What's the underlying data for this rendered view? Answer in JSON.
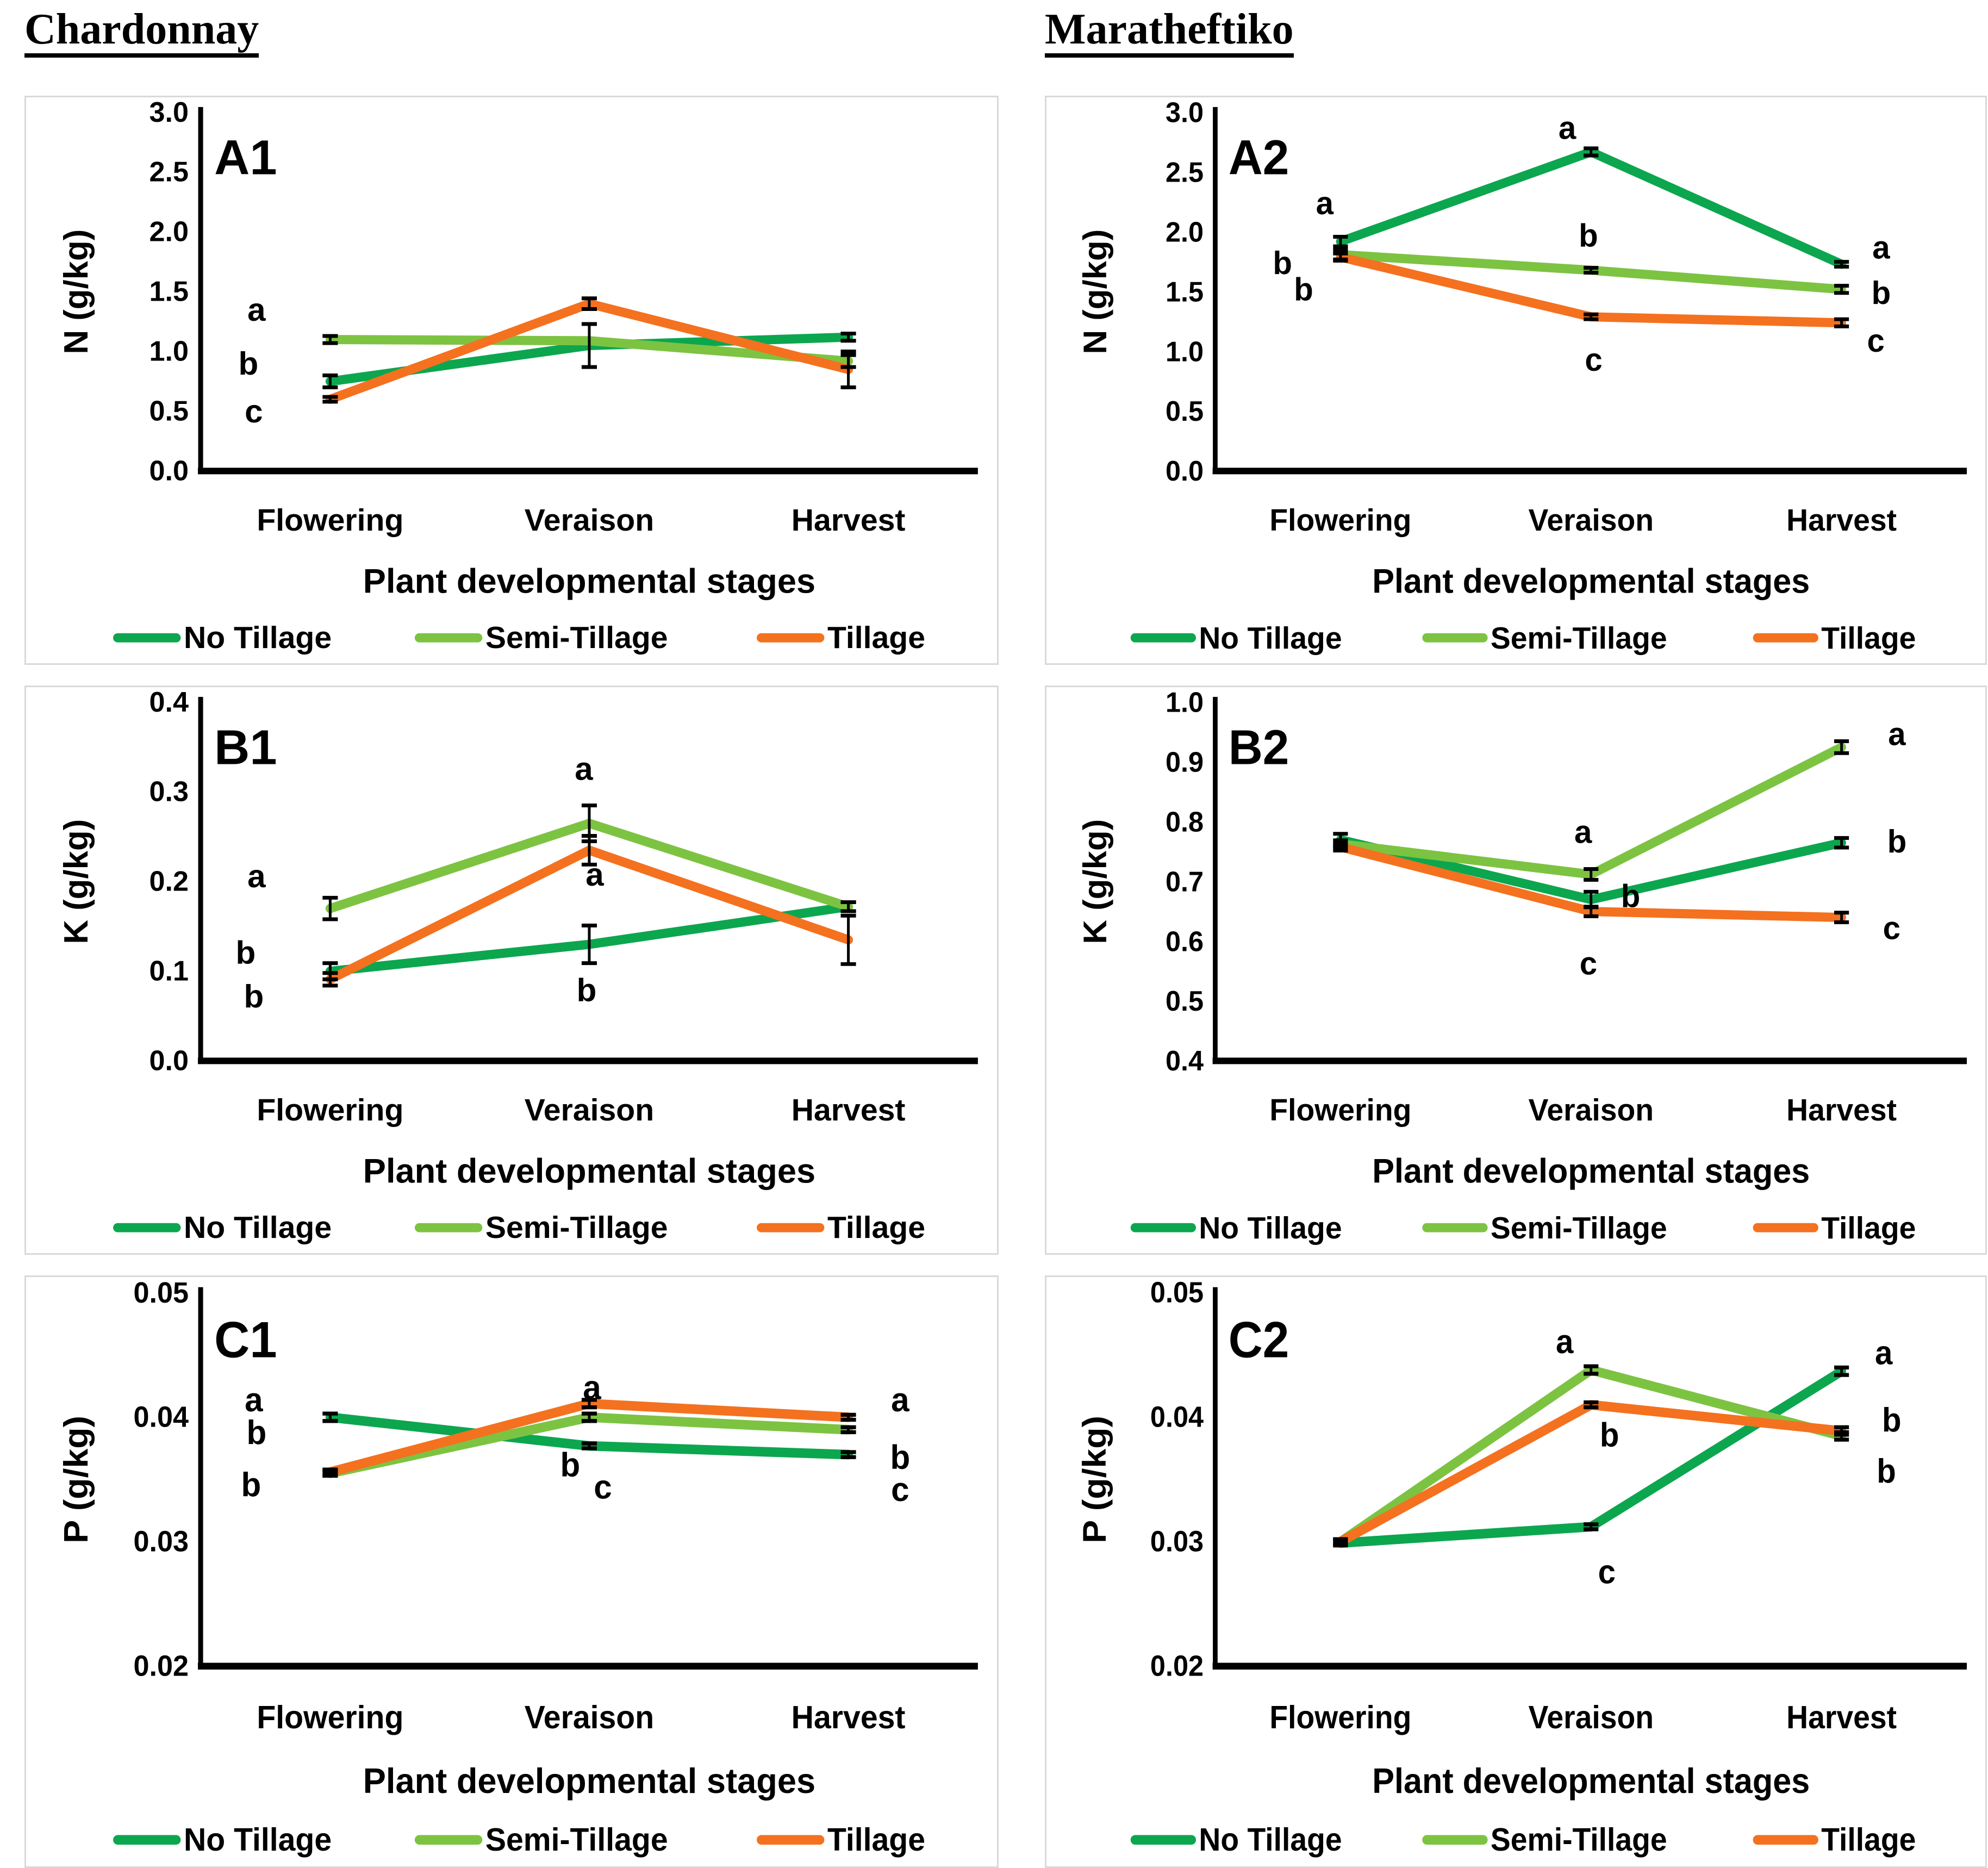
{
  "figure": {
    "column_titles": [
      {
        "text": "Chardonnay"
      },
      {
        "text": "Maratheftiko"
      }
    ]
  },
  "colors": {
    "no_tillage": "#0CA64F",
    "semi_tillage": "#7DC342",
    "tillage": "#F4711F",
    "error_bar": "#000000",
    "axis": "#000000",
    "panel_border": "#d9d9d9"
  },
  "legend": {
    "items": [
      {
        "label": "No Tillage",
        "color": "#0CA64F"
      },
      {
        "label": "Semi-Tillage",
        "color": "#7DC342"
      },
      {
        "label": "Tillage",
        "color": "#F4711F"
      }
    ]
  },
  "chart_data": [
    {
      "type": "line",
      "id": "A1",
      "variety": "Chardonnay",
      "ylabel": "N (g/kg)",
      "xlabel": "Plant developmental stages",
      "categories": [
        "Flowering",
        "Veraison",
        "Harvest"
      ],
      "ylim": [
        0,
        3
      ],
      "yticks": [
        3.0,
        2.5,
        2.0,
        1.5,
        1.0,
        0.5,
        0.0
      ],
      "ytick_decimals": 1,
      "grid": false,
      "legend_position": "bottom",
      "series": [
        {
          "name": "No Tillage",
          "color": "#0CA64F",
          "values": [
            0.75,
            1.05,
            1.12
          ],
          "errors": [
            0.05,
            0.18,
            0.03
          ]
        },
        {
          "name": "Semi-Tillage",
          "color": "#7DC342",
          "values": [
            1.1,
            1.09,
            0.92
          ],
          "errors": [
            0.03,
            0,
            0.05
          ]
        },
        {
          "name": "Tillage",
          "color": "#F4711F",
          "values": [
            0.6,
            1.4,
            0.85
          ],
          "errors": [
            0.02,
            0.045,
            0.15
          ]
        }
      ],
      "sig_letters": [
        {
          "stage": 0,
          "dx": -135,
          "value": 1.35,
          "label": "a"
        },
        {
          "stage": 0,
          "dx": -150,
          "value": 0.9,
          "label": "b"
        },
        {
          "stage": 0,
          "dx": -140,
          "value": 0.5,
          "label": "c"
        }
      ]
    },
    {
      "type": "line",
      "id": "A2",
      "variety": "Maratheftiko",
      "ylabel": "N (g/kg)",
      "xlabel": "Plant developmental stages",
      "categories": [
        "Flowering",
        "Veraison",
        "Harvest"
      ],
      "ylim": [
        0,
        3
      ],
      "yticks": [
        3.0,
        2.5,
        2.0,
        1.5,
        1.0,
        0.5,
        0.0
      ],
      "ytick_decimals": 1,
      "grid": false,
      "legend_position": "bottom",
      "series": [
        {
          "name": "No Tillage",
          "color": "#0CA64F",
          "values": [
            1.92,
            2.67,
            1.73
          ],
          "errors": [
            0.04,
            0.03,
            0.02
          ]
        },
        {
          "name": "Semi-Tillage",
          "color": "#7DC342",
          "values": [
            1.81,
            1.68,
            1.52
          ],
          "errors": [
            0.04,
            0.02,
            0.03
          ]
        },
        {
          "name": "Tillage",
          "color": "#F4711F",
          "values": [
            1.79,
            1.29,
            1.24
          ],
          "errors": [
            0.03,
            0.02,
            0.03
          ]
        }
      ],
      "sig_letters": [
        {
          "stage": 0,
          "dx": -30,
          "value": 2.24,
          "label": "a"
        },
        {
          "stage": 0,
          "dx": -110,
          "value": 1.74,
          "label": "b"
        },
        {
          "stage": 0,
          "dx": -70,
          "value": 1.52,
          "label": "b"
        },
        {
          "stage": 1,
          "dx": -45,
          "value": 2.87,
          "label": "a"
        },
        {
          "stage": 1,
          "dx": -5,
          "value": 1.97,
          "label": "b"
        },
        {
          "stage": 1,
          "dx": 5,
          "value": 0.93,
          "label": "c"
        },
        {
          "stage": 2,
          "dx": 75,
          "value": 1.87,
          "label": "a"
        },
        {
          "stage": 2,
          "dx": 75,
          "value": 1.49,
          "label": "b"
        },
        {
          "stage": 2,
          "dx": 65,
          "value": 1.09,
          "label": "c"
        }
      ]
    },
    {
      "type": "line",
      "id": "B1",
      "variety": "Chardonnay",
      "ylabel": "K (g/kg)",
      "xlabel": "Plant developmental stages",
      "categories": [
        "Flowering",
        "Veraison",
        "Harvest"
      ],
      "ylim": [
        0,
        0.4
      ],
      "yticks": [
        0.4,
        0.3,
        0.2,
        0.1,
        0.0
      ],
      "ytick_decimals": 1,
      "grid": false,
      "legend_position": "bottom",
      "series": [
        {
          "name": "No Tillage",
          "color": "#0CA64F",
          "values": [
            0.1,
            0.13,
            0.172
          ],
          "errors": [
            0.009,
            0.021,
            0.005
          ]
        },
        {
          "name": "Semi-Tillage",
          "color": "#7DC342",
          "values": [
            0.17,
            0.265,
            0.172
          ],
          "errors": [
            0.012,
            0.02,
            0.005
          ]
        },
        {
          "name": "Tillage",
          "color": "#F4711F",
          "values": [
            0.091,
            0.235,
            0.135
          ],
          "errors": [
            0.007,
            0.016,
            0.027
          ]
        }
      ],
      "sig_letters": [
        {
          "stage": 0,
          "dx": -135,
          "value": 0.206,
          "label": "a"
        },
        {
          "stage": 0,
          "dx": -155,
          "value": 0.121,
          "label": "b"
        },
        {
          "stage": 0,
          "dx": -140,
          "value": 0.072,
          "label": "b"
        },
        {
          "stage": 1,
          "dx": -10,
          "value": 0.326,
          "label": "a"
        },
        {
          "stage": 1,
          "dx": 10,
          "value": 0.208,
          "label": "a"
        },
        {
          "stage": 1,
          "dx": -5,
          "value": 0.079,
          "label": "b"
        }
      ]
    },
    {
      "type": "line",
      "id": "B2",
      "variety": "Maratheftiko",
      "ylabel": "K (g/kg)",
      "xlabel": "Plant developmental stages",
      "categories": [
        "Flowering",
        "Veraison",
        "Harvest"
      ],
      "ylim": [
        0.4,
        1.0
      ],
      "yticks": [
        1.0,
        0.9,
        0.8,
        0.7,
        0.6,
        0.5,
        0.4
      ],
      "ytick_decimals": 1,
      "grid": false,
      "legend_position": "bottom",
      "series": [
        {
          "name": "No Tillage",
          "color": "#0CA64F",
          "values": [
            0.77,
            0.67,
            0.765
          ],
          "errors": [
            0.01,
            0.013,
            0.008
          ]
        },
        {
          "name": "Semi-Tillage",
          "color": "#7DC342",
          "values": [
            0.763,
            0.712,
            0.925
          ],
          "errors": [
            0.006,
            0.009,
            0.01
          ]
        },
        {
          "name": "Tillage",
          "color": "#F4711F",
          "values": [
            0.758,
            0.65,
            0.64
          ],
          "errors": [
            0.006,
            0.008,
            0.008
          ]
        }
      ],
      "sig_letters": [
        {
          "stage": 1,
          "dx": -15,
          "value": 0.783,
          "label": "a"
        },
        {
          "stage": 1,
          "dx": 75,
          "value": 0.676,
          "label": "b"
        },
        {
          "stage": 1,
          "dx": -5,
          "value": 0.563,
          "label": "c"
        },
        {
          "stage": 2,
          "dx": 105,
          "value": 0.947,
          "label": "a"
        },
        {
          "stage": 2,
          "dx": 105,
          "value": 0.767,
          "label": "b"
        },
        {
          "stage": 2,
          "dx": 95,
          "value": 0.622,
          "label": "c"
        }
      ]
    },
    {
      "type": "line",
      "id": "C1",
      "variety": "Chardonnay",
      "ylabel": "P (g/kg)",
      "xlabel": "Plant developmental stages",
      "categories": [
        "Flowering",
        "Veraison",
        "Harvest"
      ],
      "ylim": [
        0.02,
        0.05
      ],
      "yticks": [
        0.05,
        0.04,
        0.03,
        0.02
      ],
      "ytick_decimals": 2,
      "grid": false,
      "legend_position": "bottom",
      "series": [
        {
          "name": "No Tillage",
          "color": "#0CA64F",
          "values": [
            0.04,
            0.0377,
            0.037
          ],
          "errors": [
            0.0003,
            0.0002,
            0.0002
          ]
        },
        {
          "name": "Semi-Tillage",
          "color": "#7DC342",
          "values": [
            0.0355,
            0.04,
            0.039
          ],
          "errors": [
            0.0002,
            0.0003,
            0.0002
          ]
        },
        {
          "name": "Tillage",
          "color": "#F4711F",
          "values": [
            0.0356,
            0.0411,
            0.04
          ],
          "errors": [
            0.0002,
            0.0003,
            0.0002
          ]
        }
      ],
      "sig_letters": [
        {
          "stage": 0,
          "dx": -140,
          "value": 0.0414,
          "label": "a"
        },
        {
          "stage": 0,
          "dx": -135,
          "value": 0.0388,
          "label": "b"
        },
        {
          "stage": 0,
          "dx": -145,
          "value": 0.0346,
          "label": "b"
        },
        {
          "stage": 1,
          "dx": 5,
          "value": 0.0424,
          "label": "a"
        },
        {
          "stage": 1,
          "dx": -35,
          "value": 0.0362,
          "label": "b"
        },
        {
          "stage": 1,
          "dx": 25,
          "value": 0.0344,
          "label": "c"
        },
        {
          "stage": 2,
          "dx": 95,
          "value": 0.0414,
          "label": "a"
        },
        {
          "stage": 2,
          "dx": 95,
          "value": 0.0368,
          "label": "b"
        },
        {
          "stage": 2,
          "dx": 95,
          "value": 0.0342,
          "label": "c"
        }
      ]
    },
    {
      "type": "line",
      "id": "C2",
      "variety": "Maratheftiko",
      "ylabel": "P (g/kg)",
      "xlabel": "Plant developmental stages",
      "categories": [
        "Flowering",
        "Veraison",
        "Harvest"
      ],
      "ylim": [
        0.02,
        0.05
      ],
      "yticks": [
        0.05,
        0.04,
        0.03,
        0.02
      ],
      "ytick_decimals": 2,
      "grid": false,
      "legend_position": "bottom",
      "series": [
        {
          "name": "No Tillage",
          "color": "#0CA64F",
          "values": [
            0.0299,
            0.0312,
            0.0437
          ],
          "errors": [
            0.0002,
            0.0002,
            0.0003
          ]
        },
        {
          "name": "Semi-Tillage",
          "color": "#7DC342",
          "values": [
            0.03,
            0.0438,
            0.0385
          ],
          "errors": [
            0.0002,
            0.0003,
            0.0003
          ]
        },
        {
          "name": "Tillage",
          "color": "#F4711F",
          "values": [
            0.03,
            0.041,
            0.0389
          ],
          "errors": [
            0.0002,
            0.0002,
            0.0003
          ]
        }
      ],
      "sig_letters": [
        {
          "stage": 1,
          "dx": -50,
          "value": 0.0461,
          "label": "a"
        },
        {
          "stage": 1,
          "dx": 35,
          "value": 0.0386,
          "label": "b"
        },
        {
          "stage": 1,
          "dx": 30,
          "value": 0.0276,
          "label": "c"
        },
        {
          "stage": 2,
          "dx": 80,
          "value": 0.0452,
          "label": "a"
        },
        {
          "stage": 2,
          "dx": 95,
          "value": 0.0398,
          "label": "b"
        },
        {
          "stage": 2,
          "dx": 85,
          "value": 0.0357,
          "label": "b"
        }
      ]
    }
  ]
}
